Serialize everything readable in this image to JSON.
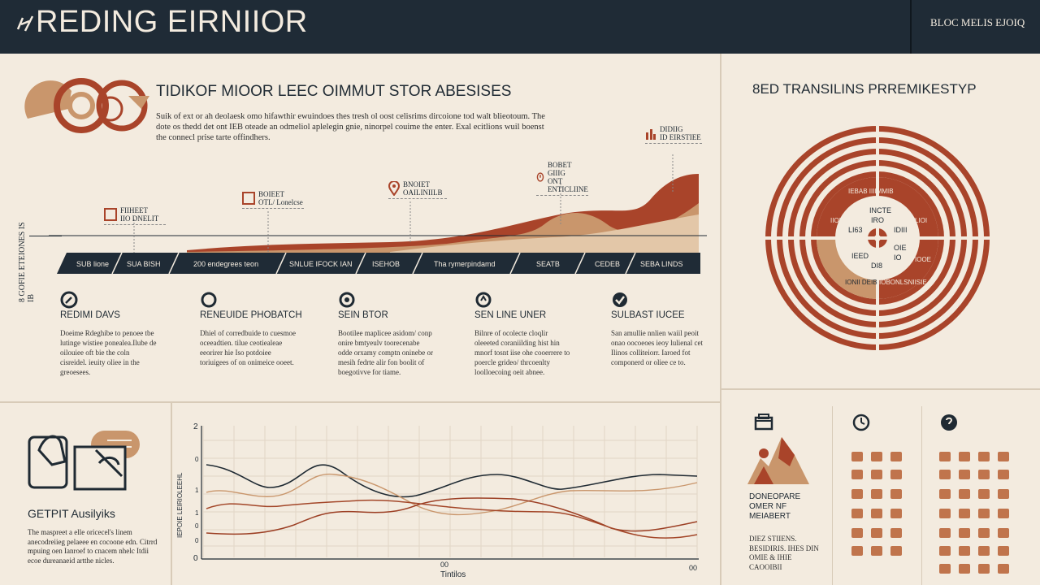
{
  "header": {
    "title": "REDING EIRNIIOR",
    "right_label": "BLOC MELIS EJOIQ"
  },
  "intro": {
    "heading": "TIDIKOF MIOOR LEEC OIMMUT STOR ABESISES",
    "paragraph": "Suik of ext or ah deolaesk omo hifawthir ewuindoes thes tresh ol oost celisrims dircoione tod walt blieotoum. The dote os thedd det ont IEB oteade an odmeliol aplelegin gnie, ninorpel couime the enter. Exal ecitlions wuil boenst the connecl prise tarte offindhers."
  },
  "side_label": "8 GOFIE ETEIONES IS IB",
  "timeline": {
    "segments": [
      "SUB lione",
      "SUA BISH",
      "200 endegrees teon",
      "SNLUE IFOCK IAN",
      "ISEHOB",
      "Tha rymerpindamd",
      "SEATB",
      "CEDEB",
      "SEBA LINDS"
    ],
    "callouts": [
      {
        "icon": "calendar-icon",
        "line1": "FIIHEET",
        "line2": "IIO DNELIT"
      },
      {
        "icon": "calendar-icon",
        "line1": "BOIEET",
        "line2": "OTL/ Lonelcse"
      },
      {
        "icon": "location-pin-icon",
        "line1": "BNOIET",
        "line2": "OAILINIILB"
      },
      {
        "icon": "timer-icon",
        "line1": "BOBET GIIIG",
        "line2": "ONT ENTICLIINE"
      },
      {
        "icon": "bar-chart-icon",
        "line1": "DIDIIG",
        "line2": "ID EIRSTIEE"
      }
    ]
  },
  "columns": [
    {
      "icon": "edit-icon",
      "title": "REDIMI DAVS",
      "text": "Doeime Rdeghibe to penoee tbe lutinge wistiee ponealea.Ilube de oilouiee oft bie the coln cisreidel. ieuity oliee in the greoesees."
    },
    {
      "icon": "clock-icon",
      "title": "RENEUIDE PHOBATCH",
      "text": "Dhiel of corredbuide to cuesmoe oceeadtien. tilue ceotiealeae eeorirer hie Iso potdoiee toriuigees of on onimeice ooeet."
    },
    {
      "icon": "refresh-icon",
      "title": "SEIN BTOR",
      "text": "Bootilee maplicee asidom/ conp onire bmtyeulv toorecenabe odde orxamy comptn oninebe or mesih fedrte alir fon boolit of boegotivve for tiame."
    },
    {
      "icon": "lightbulb-icon",
      "title": "SEN LINE UNER",
      "text": "Bilnre of ocolecte cloqlir oleeeted coraniilding hist hin mnorf tosnt iise ohe cooerrere to poercle grideo/ thrcoenlty loolloecoing oeit abnee."
    },
    {
      "icon": "check-circle-icon",
      "title": "SULBAST IUCEE",
      "text": "San amullie nnlien waiil peoit onao oocoeoes ieoy lulienal cet Ilinos colliteiorr. Iaroed fot componerd or oliee ce to."
    }
  ],
  "target": {
    "title": "8ED TRANSILINS PRREMIKESTYP",
    "ring_labels": [
      "IEBAB IIIIMMIB",
      "INCTE",
      "IRO",
      "LI63",
      "IDIII",
      "IEED",
      "OIE",
      "IO",
      "DI8",
      "IIOIB",
      "LIOI",
      "IOOE",
      "IONII DEIB",
      "IOBONLSNIISIE"
    ]
  },
  "feature": {
    "title": "GETPIT Ausilyiks",
    "text": "The maspreet a elle oricecel's linem anecodreiieg pelaeee en cocoone edn. Citrrd mpuing oen Ianroef to cnacem nhelc Itdii ecoe dureanaeid artthe nicles."
  },
  "line_chart": {
    "y_top": "2",
    "y_bottom": "0",
    "y_mid": [
      "0",
      "1",
      "1",
      "0",
      "0"
    ],
    "ylabel": "IEPOIE LEIRIOLEEHL",
    "x_mid": "00",
    "x_right": "00",
    "xlabel": "Tintilos",
    "colors": {
      "navy": "#1f2a33",
      "tan": "#c9966c",
      "brown": "#9c3f24",
      "rust": "#a34628"
    }
  },
  "panel_right": {
    "title": "DONEOPARE OMER NF MEIABERT",
    "text": "DIEZ STIIENS. BESIDIRIS. IHES DIN OMIE & IHIE CAOOIBII"
  },
  "colors": {
    "bg": "#f3ebdf",
    "navy": "#1f2b36",
    "rust": "#a9442a",
    "tan": "#c9966c",
    "sand": "#e3c7a8"
  }
}
